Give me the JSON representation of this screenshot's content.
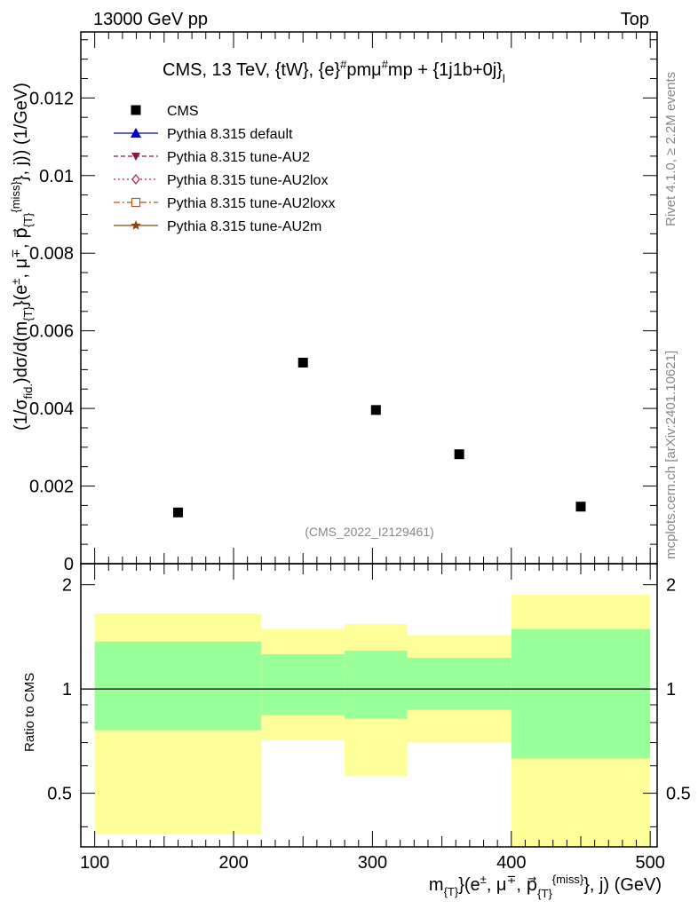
{
  "header": {
    "left": "13000 GeV pp",
    "right": "Top"
  },
  "side_labels": {
    "rivet": "Rivet 4.1.0, ≥ 2.2M events",
    "mcplots": "mcplots.cern.ch [arXiv:2401.10621]"
  },
  "chart_data": [
    {
      "type": "scatter",
      "panel": "main",
      "title": "CMS, 13 TeV, {tW}, {e}#pmμ#mp + {1j1b+0j}_l",
      "ylabel": "(1/σ_fid.)dσ/d(m_{T}(e±, μ∓, p_{T}^{miss}, j)) (1/GeV)",
      "xlim": [
        90,
        505
      ],
      "ylim": [
        0,
        0.0137
      ],
      "yticks": [
        0,
        0.002,
        0.004,
        0.006,
        0.008,
        0.01,
        0.012
      ],
      "ytick_labels": [
        "0",
        "0.002",
        "0.004",
        "0.006",
        "0.008",
        "0.01",
        "0.012"
      ],
      "analysis_id": "(CMS_2022_I2129461)",
      "series": [
        {
          "name": "CMS",
          "marker": "square",
          "color": "#000000",
          "x": [
            160,
            250,
            302.5,
            362.5,
            450
          ],
          "y": [
            0.00132,
            0.00518,
            0.00396,
            0.00282,
            0.00147
          ]
        }
      ],
      "legend": [
        {
          "label": "CMS",
          "style": "marker",
          "marker": "square",
          "color": "#000000"
        },
        {
          "label": "Pythia 8.315 default",
          "style": "solid",
          "marker": "triangle",
          "color": "#0000cc"
        },
        {
          "label": "Pythia 8.315 tune-AU2",
          "style": "dashed",
          "marker": "triangle-down",
          "color": "#8b1a4a"
        },
        {
          "label": "Pythia 8.315 tune-AU2lox",
          "style": "dotted",
          "marker": "diamond",
          "color": "#b0203c"
        },
        {
          "label": "Pythia 8.315 tune-AU2loxx",
          "style": "dashdot",
          "marker": "open-square",
          "color": "#c0501a"
        },
        {
          "label": "Pythia 8.315 tune-AU2m",
          "style": "solid",
          "marker": "star",
          "color": "#8b4513"
        }
      ]
    },
    {
      "type": "area",
      "panel": "ratio",
      "ylabel": "Ratio to CMS",
      "xlabel": "m_{T}(e±, μ∓, p_{T}^{miss}, j) (GeV)",
      "xlim": [
        90,
        505
      ],
      "ylim": [
        0.35,
        2.3
      ],
      "xticks": [
        100,
        200,
        300,
        400,
        500
      ],
      "xtick_labels": [
        "100",
        "200",
        "300",
        "400",
        "500"
      ],
      "yticks": [
        0.5,
        1,
        2
      ],
      "ytick_labels": [
        "0.5",
        "1",
        "2"
      ],
      "reference_line": 1,
      "bins": [
        {
          "lo": 100,
          "hi": 220,
          "inner": [
            0.76,
            1.37
          ],
          "outer": [
            0.38,
            1.65
          ]
        },
        {
          "lo": 220,
          "hi": 280,
          "inner": [
            0.84,
            1.26
          ],
          "outer": [
            0.71,
            1.49
          ]
        },
        {
          "lo": 280,
          "hi": 325,
          "inner": [
            0.82,
            1.29
          ],
          "outer": [
            0.56,
            1.54
          ]
        },
        {
          "lo": 325,
          "hi": 400,
          "inner": [
            0.87,
            1.23
          ],
          "outer": [
            0.7,
            1.43
          ]
        },
        {
          "lo": 400,
          "hi": 500,
          "inner": [
            0.63,
            1.49
          ],
          "outer": [
            0.33,
            1.87
          ]
        }
      ],
      "band_colors": {
        "inner": "#99ff99",
        "outer": "#ffff99"
      }
    }
  ]
}
